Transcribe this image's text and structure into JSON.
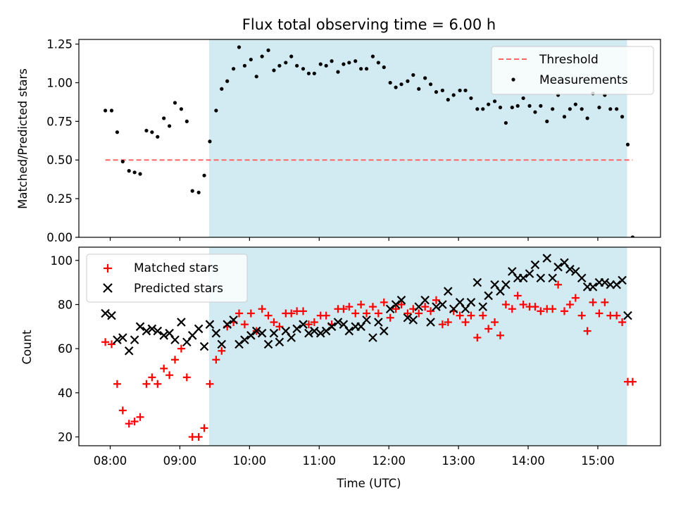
{
  "chart_data": [
    {
      "type": "scatter",
      "title": "Flux total observing time = 6.00 h",
      "ylabel": "Matched/Predicted stars",
      "xlabel": "",
      "xlim": [
        7.55,
        15.9
      ],
      "ylim": [
        0,
        1.28
      ],
      "yticks": [
        0,
        0.25,
        0.5,
        0.75,
        1.0,
        1.25
      ],
      "ytick_labels": [
        "0.00",
        "0.25",
        "0.50",
        "0.75",
        "1.00",
        "1.25"
      ],
      "xticks": [
        8,
        9,
        10,
        11,
        12,
        13,
        14,
        15
      ],
      "shaded_span": [
        9.42,
        15.42
      ],
      "shade_color": "#add8e6",
      "threshold": {
        "label": "Threshold",
        "value": 0.5,
        "x_range": [
          7.93,
          15.5
        ],
        "color": "#ff6666"
      },
      "legend": {
        "placement": "top-right",
        "entries": [
          "Threshold",
          "Measurements"
        ]
      },
      "series": [
        {
          "name": "Measurements",
          "color": "#000000",
          "x": [
            7.93,
            8.02,
            8.1,
            8.18,
            8.27,
            8.35,
            8.43,
            8.52,
            8.6,
            8.68,
            8.77,
            8.85,
            8.93,
            9.02,
            9.1,
            9.18,
            9.27,
            9.35,
            9.43,
            9.52,
            9.6,
            9.68,
            9.77,
            9.85,
            9.93,
            10.02,
            10.1,
            10.18,
            10.27,
            10.35,
            10.43,
            10.52,
            10.6,
            10.68,
            10.77,
            10.85,
            10.93,
            11.02,
            11.1,
            11.18,
            11.27,
            11.35,
            11.43,
            11.52,
            11.6,
            11.68,
            11.77,
            11.85,
            11.93,
            12.02,
            12.1,
            12.18,
            12.27,
            12.35,
            12.43,
            12.52,
            12.6,
            12.68,
            12.77,
            12.85,
            12.93,
            13.02,
            13.1,
            13.18,
            13.27,
            13.35,
            13.43,
            13.52,
            13.6,
            13.68,
            13.77,
            13.85,
            13.93,
            14.02,
            14.1,
            14.18,
            14.27,
            14.35,
            14.43,
            14.52,
            14.6,
            14.68,
            14.77,
            14.85,
            14.93,
            15.02,
            15.1,
            15.18,
            15.27,
            15.35,
            15.43,
            15.5
          ],
          "y": [
            0.82,
            0.82,
            0.68,
            0.49,
            0.43,
            0.42,
            0.41,
            0.69,
            0.68,
            0.65,
            0.77,
            0.72,
            0.87,
            0.83,
            0.75,
            0.3,
            0.29,
            0.4,
            0.62,
            0.82,
            0.96,
            1.01,
            1.09,
            1.23,
            1.11,
            1.15,
            1.04,
            1.17,
            1.21,
            1.08,
            1.11,
            1.13,
            1.17,
            1.11,
            1.09,
            1.06,
            1.06,
            1.12,
            1.11,
            1.14,
            1.07,
            1.12,
            1.13,
            1.14,
            1.09,
            1.09,
            1.17,
            1.13,
            1.1,
            1.0,
            0.97,
            0.99,
            1.01,
            1.05,
            0.96,
            1.03,
            0.99,
            0.94,
            0.95,
            0.89,
            0.92,
            0.95,
            0.95,
            0.9,
            0.83,
            0.83,
            0.86,
            0.88,
            0.84,
            0.74,
            0.84,
            0.85,
            0.9,
            0.85,
            0.81,
            0.85,
            0.75,
            0.83,
            0.92,
            0.78,
            0.83,
            0.86,
            0.83,
            0.77,
            0.93,
            0.84,
            0.92,
            0.83,
            0.83,
            0.78,
            0.6,
            0.0
          ]
        }
      ]
    },
    {
      "type": "scatter",
      "title": "",
      "ylabel": "Count",
      "xlabel": "Time (UTC)",
      "xlim": [
        7.55,
        15.9
      ],
      "ylim": [
        16,
        106
      ],
      "yticks": [
        20,
        40,
        60,
        80,
        100
      ],
      "ytick_labels": [
        "20",
        "40",
        "60",
        "80",
        "100"
      ],
      "xticks": [
        8,
        9,
        10,
        11,
        12,
        13,
        14,
        15
      ],
      "xtick_labels": [
        "08:00",
        "09:00",
        "10:00",
        "11:00",
        "12:00",
        "13:00",
        "14:00",
        "15:00"
      ],
      "shaded_span": [
        9.42,
        15.42
      ],
      "shade_color": "#add8e6",
      "legend": {
        "placement": "top-left",
        "entries": [
          "Matched stars",
          "Predicted stars"
        ]
      },
      "series": [
        {
          "name": "Matched stars",
          "marker": "plus",
          "color": "#ff0000",
          "x": [
            7.93,
            8.02,
            8.1,
            8.18,
            8.27,
            8.35,
            8.43,
            8.52,
            8.6,
            8.68,
            8.77,
            8.85,
            8.93,
            9.02,
            9.1,
            9.18,
            9.27,
            9.35,
            9.43,
            9.52,
            9.6,
            9.68,
            9.77,
            9.85,
            9.93,
            10.02,
            10.1,
            10.18,
            10.27,
            10.35,
            10.43,
            10.52,
            10.6,
            10.68,
            10.77,
            10.85,
            10.93,
            11.02,
            11.1,
            11.18,
            11.27,
            11.35,
            11.43,
            11.52,
            11.6,
            11.68,
            11.77,
            11.85,
            11.93,
            12.02,
            12.1,
            12.18,
            12.27,
            12.35,
            12.43,
            12.52,
            12.6,
            12.68,
            12.77,
            12.85,
            12.93,
            13.02,
            13.1,
            13.18,
            13.27,
            13.35,
            13.43,
            13.52,
            13.6,
            13.68,
            13.77,
            13.85,
            13.93,
            14.02,
            14.1,
            14.18,
            14.27,
            14.35,
            14.43,
            14.52,
            14.6,
            14.68,
            14.77,
            14.85,
            14.93,
            15.02,
            15.1,
            15.18,
            15.27,
            15.35,
            15.43,
            15.5
          ],
          "y": [
            63,
            62,
            44,
            32,
            26,
            27,
            29,
            44,
            47,
            44,
            51,
            48,
            55,
            60,
            47,
            20,
            20,
            24,
            44,
            55,
            59,
            70,
            72,
            76,
            71,
            76,
            68,
            78,
            75,
            72,
            70,
            76,
            76,
            77,
            77,
            71,
            72,
            75,
            75,
            71,
            78,
            78,
            79,
            76,
            80,
            76,
            79,
            76,
            81,
            74,
            78,
            80,
            76,
            78,
            76,
            79,
            77,
            82,
            71,
            72,
            77,
            75,
            72,
            75,
            65,
            75,
            69,
            72,
            66,
            80,
            78,
            84,
            80,
            79,
            79,
            77,
            78,
            78,
            89,
            77,
            80,
            83,
            75,
            68,
            81,
            76,
            81,
            75,
            75,
            72,
            45,
            45
          ]
        },
        {
          "name": "Predicted stars",
          "marker": "x",
          "color": "#000000",
          "x": [
            7.93,
            8.02,
            8.1,
            8.18,
            8.27,
            8.35,
            8.43,
            8.52,
            8.6,
            8.68,
            8.77,
            8.85,
            8.93,
            9.02,
            9.1,
            9.18,
            9.27,
            9.35,
            9.43,
            9.52,
            9.6,
            9.68,
            9.77,
            9.85,
            9.93,
            10.02,
            10.1,
            10.18,
            10.27,
            10.35,
            10.43,
            10.52,
            10.6,
            10.68,
            10.77,
            10.85,
            10.93,
            11.02,
            11.1,
            11.18,
            11.27,
            11.35,
            11.43,
            11.52,
            11.6,
            11.68,
            11.77,
            11.85,
            11.93,
            12.02,
            12.1,
            12.18,
            12.27,
            12.35,
            12.43,
            12.52,
            12.6,
            12.68,
            12.77,
            12.85,
            12.93,
            13.02,
            13.1,
            13.18,
            13.27,
            13.35,
            13.43,
            13.52,
            13.6,
            13.68,
            13.77,
            13.85,
            13.93,
            14.02,
            14.1,
            14.18,
            14.27,
            14.35,
            14.43,
            14.52,
            14.6,
            14.68,
            14.77,
            14.85,
            14.93,
            15.02,
            15.1,
            15.18,
            15.27,
            15.35,
            15.43
          ],
          "y": [
            76,
            75,
            64,
            65,
            59,
            64,
            70,
            68,
            69,
            68,
            66,
            67,
            64,
            72,
            63,
            66,
            69,
            61,
            71,
            67,
            62,
            71,
            73,
            62,
            64,
            66,
            68,
            67,
            62,
            67,
            63,
            68,
            65,
            69,
            71,
            67,
            68,
            67,
            68,
            70,
            72,
            71,
            68,
            70,
            70,
            73,
            65,
            72,
            68,
            78,
            80,
            82,
            74,
            73,
            79,
            82,
            72,
            79,
            80,
            86,
            78,
            81,
            78,
            81,
            90,
            79,
            84,
            89,
            86,
            89,
            95,
            92,
            92,
            94,
            98,
            92,
            101,
            92,
            97,
            99,
            96,
            95,
            92,
            88,
            88,
            90,
            90,
            89,
            89,
            91,
            75
          ]
        }
      ]
    }
  ]
}
